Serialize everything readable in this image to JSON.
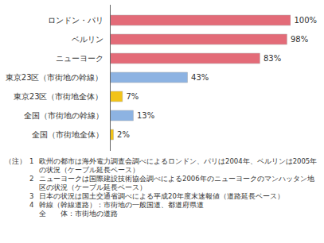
{
  "chart_data": {
    "type": "bar",
    "orientation": "horizontal",
    "categories": [
      "ロンドン・パリ",
      "ベルリン",
      "ニューヨーク",
      "東京23区（市街地の幹線）",
      "東京23区（市街地全体）",
      "全国（市街地の幹線）",
      "全国（市街地全体）"
    ],
    "values": [
      100,
      98,
      83,
      43,
      7,
      13,
      2
    ],
    "value_labels": [
      "100%",
      "98%",
      "83%",
      "43%",
      "7%",
      "13%",
      "2%"
    ],
    "colors": [
      "#e36b78",
      "#e36b78",
      "#e36b78",
      "#8db3e2",
      "#f2c318",
      "#8db3e2",
      "#f2c318"
    ],
    "xlim": [
      0,
      100
    ],
    "data_labels": true,
    "tick_labels": "y",
    "grid": false,
    "notes": {
      "prefix": "（注）",
      "items": [
        {
          "number": "1",
          "lines": [
            "欧州の都市は海外電力調査会調べによるロンドン、パリは2004年、ベルリンは2005年の状況（ケーブル延長ベース）"
          ]
        },
        {
          "number": "2",
          "lines": [
            "ニューヨークは国際建設技術協会調べによる2006年のニューヨークのマンハッタン地区の状況（ケーブル延長ベース）"
          ]
        },
        {
          "number": "3",
          "lines": [
            "日本の状況は国土交通省調べによる平成20年度末速報値（道路延長ベース）"
          ]
        },
        {
          "number": "4",
          "lines": [
            "幹線（幹線道路）：市街地の一般国道、都道府県道",
            "全　　体：市街地の道路"
          ]
        }
      ]
    }
  }
}
